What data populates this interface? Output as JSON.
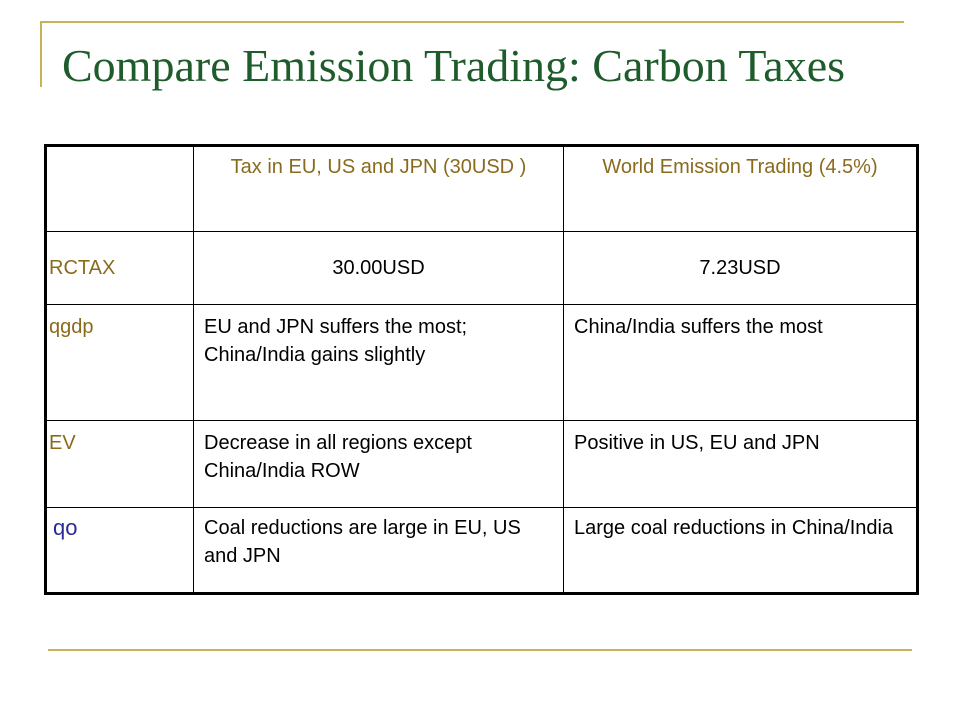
{
  "slide": {
    "title": "Compare Emission Trading: Carbon Taxes"
  },
  "table": {
    "header": {
      "corner": "",
      "col1": "Tax in EU, US and JPN (30USD )",
      "col2": "World Emission Trading (4.5%)"
    },
    "rows": [
      {
        "label": "RCTAX",
        "col1": "30.00USD",
        "col2": "7.23USD"
      },
      {
        "label": "qgdp",
        "col1": "EU and JPN suffers the most; China/India gains slightly",
        "col2": "China/India suffers the most"
      },
      {
        "label": "EV",
        "col1": "Decrease in all regions except China/India ROW",
        "col2": "Positive in US, EU and JPN"
      },
      {
        "label": "qo",
        "col1": "Coal reductions are large in EU, US and JPN",
        "col2": "Large coal reductions in China/India"
      }
    ]
  },
  "colors": {
    "title": "#1f5c2c",
    "accent_rule": "#c9b05a",
    "header_text": "#8a6b1e",
    "qo_label": "#2a2a9a"
  }
}
